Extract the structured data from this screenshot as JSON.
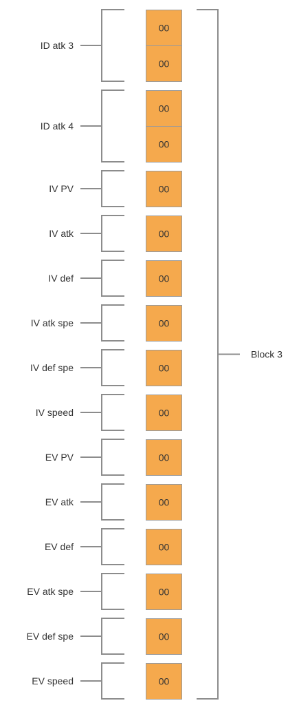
{
  "diagram": {
    "block_label": "Block 3",
    "colors": {
      "cell_fill": "#F5A94D",
      "cell_border": "#9A9A9A",
      "bracket_line": "#8C8C8C",
      "text": "#333333"
    },
    "fields": [
      {
        "label": "ID atk 3",
        "cells": [
          "00",
          "00"
        ]
      },
      {
        "label": "ID atk 4",
        "cells": [
          "00",
          "00"
        ]
      },
      {
        "label": "IV PV",
        "cells": [
          "00"
        ]
      },
      {
        "label": "IV atk",
        "cells": [
          "00"
        ]
      },
      {
        "label": "IV def",
        "cells": [
          "00"
        ]
      },
      {
        "label": "IV atk spe",
        "cells": [
          "00"
        ]
      },
      {
        "label": "IV def spe",
        "cells": [
          "00"
        ]
      },
      {
        "label": "IV speed",
        "cells": [
          "00"
        ]
      },
      {
        "label": "EV PV",
        "cells": [
          "00"
        ]
      },
      {
        "label": "EV atk",
        "cells": [
          "00"
        ]
      },
      {
        "label": "EV def",
        "cells": [
          "00"
        ]
      },
      {
        "label": "EV atk spe",
        "cells": [
          "00"
        ]
      },
      {
        "label": "EV def spe",
        "cells": [
          "00"
        ]
      },
      {
        "label": "EV speed",
        "cells": [
          "00"
        ]
      }
    ]
  }
}
